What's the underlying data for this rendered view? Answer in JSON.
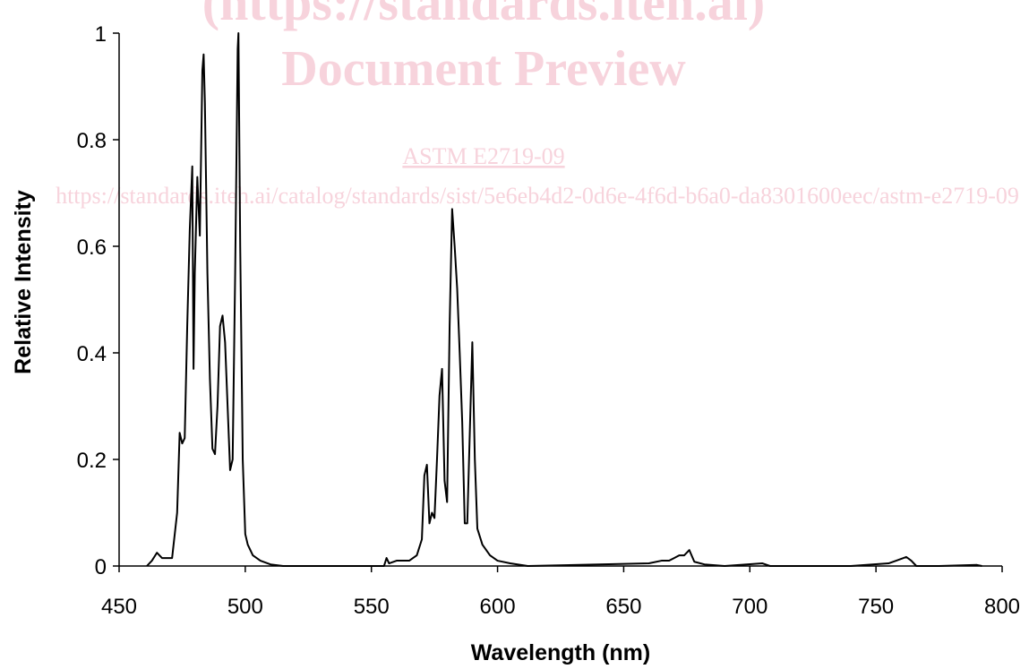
{
  "watermark": {
    "site": "(https://standards.iteh.ai)",
    "preview": "Document Preview",
    "standard": "ASTM E2719-09",
    "url": "https://standards.iteh.ai/catalog/standards/sist/5e6eb4d2-0d6e-4f6d-b6a0-da8301600eec/astm-e2719-09"
  },
  "chart_data": {
    "type": "line",
    "x_label": "Wavelength (nm)",
    "y_label": "Relative Intensity",
    "xlim": [
      450,
      800
    ],
    "ylim": [
      0,
      1
    ],
    "xticks": [
      450,
      500,
      550,
      600,
      650,
      700,
      750,
      800
    ],
    "yticks": [
      0,
      0.2,
      0.4,
      0.6,
      0.8,
      1
    ],
    "grid": false,
    "series": [
      {
        "color": "#000000",
        "x": [
          461,
          463,
          465,
          467,
          471,
          473,
          474,
          475,
          476,
          477,
          478,
          479,
          479.5,
          480,
          481,
          482,
          483,
          483.5,
          484,
          485,
          486,
          487,
          488,
          489,
          490,
          491,
          492,
          493,
          494,
          495,
          496,
          497,
          497.3,
          498,
          499,
          500,
          501,
          503,
          506,
          510,
          515,
          545,
          555,
          556,
          557,
          560,
          565,
          568,
          570,
          571,
          572,
          573,
          574,
          575,
          576,
          577,
          578,
          579,
          580,
          581,
          582,
          583,
          584,
          585,
          586,
          587,
          588,
          589,
          590,
          591,
          592,
          594,
          597,
          600,
          605,
          612,
          660,
          665,
          668,
          670,
          672,
          674,
          676,
          678,
          682,
          690,
          705,
          708,
          740,
          755,
          758,
          762,
          764,
          766,
          775,
          790,
          792
        ],
        "values": [
          0,
          0.01,
          0.025,
          0.015,
          0.015,
          0.1,
          0.25,
          0.23,
          0.24,
          0.45,
          0.63,
          0.75,
          0.37,
          0.55,
          0.73,
          0.62,
          0.93,
          0.96,
          0.87,
          0.55,
          0.35,
          0.22,
          0.21,
          0.3,
          0.45,
          0.47,
          0.42,
          0.3,
          0.18,
          0.2,
          0.55,
          0.97,
          1,
          0.6,
          0.2,
          0.06,
          0.04,
          0.02,
          0.01,
          0.003,
          0,
          0,
          0,
          0.015,
          0.005,
          0.01,
          0.01,
          0.02,
          0.05,
          0.17,
          0.19,
          0.08,
          0.1,
          0.09,
          0.2,
          0.32,
          0.37,
          0.16,
          0.12,
          0.45,
          0.67,
          0.6,
          0.52,
          0.4,
          0.27,
          0.08,
          0.08,
          0.25,
          0.42,
          0.2,
          0.07,
          0.04,
          0.02,
          0.01,
          0.005,
          0,
          0.005,
          0.01,
          0.01,
          0.015,
          0.02,
          0.02,
          0.03,
          0.008,
          0.003,
          0,
          0.005,
          0,
          0,
          0.005,
          0.01,
          0.017,
          0.01,
          0,
          0,
          0.002,
          0
        ]
      }
    ]
  }
}
